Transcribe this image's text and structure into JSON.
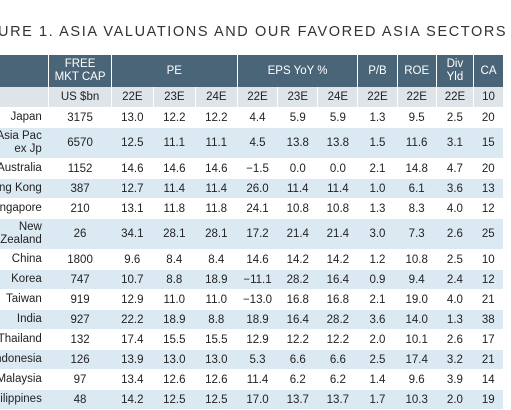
{
  "title": "URE 1. ASIA VALUATIONS AND OUR FAVORED ASIA SECTORS",
  "header": {
    "free_mkt_cap": [
      "FREE",
      "MKT CAP"
    ],
    "groups": [
      "PE",
      "EPS YoY %",
      "P/B",
      "ROE",
      "Div Yld",
      "CA"
    ],
    "div_yld": [
      "Div",
      "Yld"
    ]
  },
  "subheader": [
    "US $bn",
    "22E",
    "23E",
    "24E",
    "22E",
    "23E",
    "24E",
    "22E",
    "22E",
    "22E",
    "10"
  ],
  "rows": [
    {
      "country": [
        "Japan"
      ],
      "cap": "3175",
      "v": [
        "13.0",
        "12.2",
        "12.2",
        "4.4",
        "5.9",
        "5.9",
        "1.3",
        "9.5",
        "2.5",
        "20"
      ]
    },
    {
      "country": [
        "Asia Pac",
        "ex Jp"
      ],
      "cap": "6570",
      "v": [
        "12.5",
        "11.1",
        "11.1",
        "4.5",
        "13.8",
        "13.8",
        "1.5",
        "11.6",
        "3.1",
        "15"
      ]
    },
    {
      "country": [
        "Australia"
      ],
      "cap": "1152",
      "v": [
        "14.6",
        "14.6",
        "14.6",
        "−1.5",
        "0.0",
        "0.0",
        "2.1",
        "14.8",
        "4.7",
        "20"
      ]
    },
    {
      "country": [
        "ng Kong"
      ],
      "cap": "387",
      "v": [
        "12.7",
        "11.4",
        "11.4",
        "26.0",
        "11.4",
        "11.4",
        "1.0",
        "6.1",
        "3.6",
        "13"
      ]
    },
    {
      "country": [
        "ngapore"
      ],
      "cap": "210",
      "v": [
        "13.1",
        "11.8",
        "11.8",
        "24.1",
        "10.8",
        "10.8",
        "1.3",
        "8.3",
        "4.0",
        "12"
      ]
    },
    {
      "country": [
        "New",
        "Zealand"
      ],
      "cap": "26",
      "v": [
        "34.1",
        "28.1",
        "28.1",
        "17.2",
        "21.4",
        "21.4",
        "3.0",
        "7.3",
        "2.6",
        "25"
      ]
    },
    {
      "country": [
        "China"
      ],
      "cap": "1800",
      "v": [
        "9.6",
        "8.4",
        "8.4",
        "14.6",
        "14.2",
        "14.2",
        "1.2",
        "10.8",
        "2.5",
        "10"
      ]
    },
    {
      "country": [
        "Korea"
      ],
      "cap": "747",
      "v": [
        "10.7",
        "8.8",
        "18.9",
        "−11.1",
        "28.2",
        "16.4",
        "0.9",
        "9.4",
        "2.4",
        "12"
      ]
    },
    {
      "country": [
        "Taiwan"
      ],
      "cap": "919",
      "v": [
        "12.9",
        "11.0",
        "11.0",
        "−13.0",
        "16.8",
        "16.8",
        "2.1",
        "19.0",
        "4.0",
        "21"
      ]
    },
    {
      "country": [
        "India"
      ],
      "cap": "927",
      "v": [
        "22.2",
        "18.9",
        "8.8",
        "18.9",
        "16.4",
        "28.2",
        "3.6",
        "14.0",
        "1.3",
        "38"
      ]
    },
    {
      "country": [
        "Thailand"
      ],
      "cap": "132",
      "v": [
        "17.4",
        "15.5",
        "15.5",
        "12.9",
        "12.2",
        "12.2",
        "2.0",
        "10.1",
        "2.6",
        "17"
      ]
    },
    {
      "country": [
        "ndonesia"
      ],
      "cap": "126",
      "v": [
        "13.9",
        "13.0",
        "13.0",
        "5.3",
        "6.6",
        "6.6",
        "2.5",
        "17.4",
        "3.2",
        "21"
      ]
    },
    {
      "country": [
        "Malaysia"
      ],
      "cap": "97",
      "v": [
        "13.4",
        "12.6",
        "12.6",
        "11.4",
        "6.2",
        "6.2",
        "1.4",
        "9.6",
        "3.9",
        "14"
      ]
    },
    {
      "country": [
        "ilippines"
      ],
      "cap": "48",
      "v": [
        "14.2",
        "12.5",
        "12.5",
        "17.0",
        "13.7",
        "13.7",
        "1.7",
        "10.3",
        "2.0",
        "19"
      ]
    }
  ],
  "colors": {
    "header_bg": "#4a6478",
    "subheader_bg": "#dfe4e8",
    "stripe_bg": "#dbe9f3"
  }
}
